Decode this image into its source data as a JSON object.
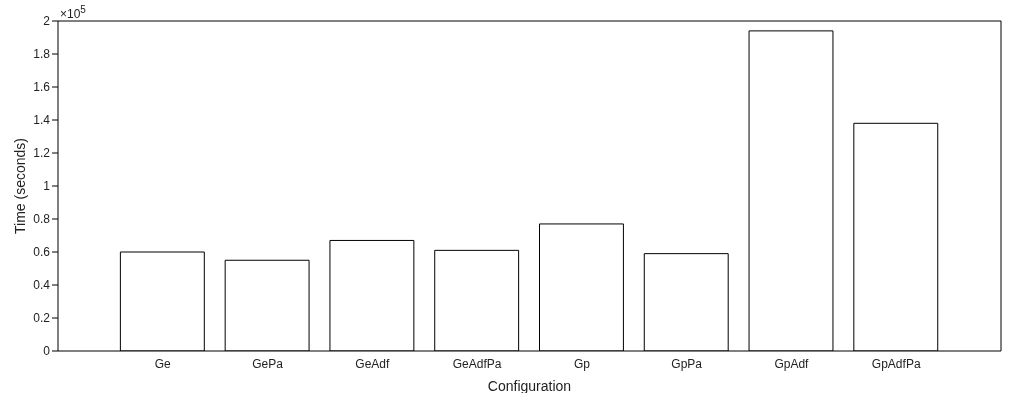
{
  "chart_data": {
    "type": "bar",
    "xlabel": "Configuration",
    "ylabel": "Time (seconds)",
    "categories": [
      "Ge",
      "GePa",
      "GeAdf",
      "GeAdfPa",
      "Gp",
      "GpPa",
      "GpAdf",
      "GpAdfPa"
    ],
    "values": [
      0.6,
      0.55,
      0.67,
      0.61,
      0.77,
      0.59,
      1.94,
      1.38
    ],
    "color": "#ffffff",
    "ylim": [
      0,
      2
    ],
    "yticks": [
      0,
      0.2,
      0.4,
      0.6,
      0.8,
      1,
      1.2,
      1.4,
      1.6,
      1.8,
      2
    ],
    "annotations": [
      "×10$^{5}$"
    ],
    "grid": false,
    "legend": false
  }
}
